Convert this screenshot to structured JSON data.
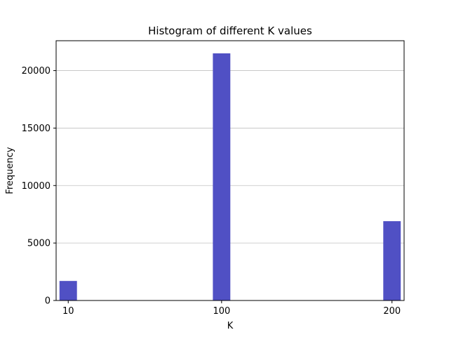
{
  "chart_data": {
    "type": "bar",
    "title": "Histogram of different K values",
    "xlabel": "K",
    "ylabel": "Frequency",
    "x_ticks": [
      10,
      100,
      200
    ],
    "y_ticks": [
      0,
      5000,
      10000,
      15000,
      20000
    ],
    "xlim": [
      2.9,
      207.1
    ],
    "ylim": [
      0,
      22600
    ],
    "bin_width": 10.25,
    "bars": [
      {
        "x": 10,
        "value": 1700
      },
      {
        "x": 100,
        "value": 21500
      },
      {
        "x": 200,
        "value": 6900
      }
    ],
    "grid": {
      "y": true,
      "x": false
    },
    "colors": {
      "bar": "#5050c4",
      "grid": "#c0c0c0",
      "axis": "#000000"
    }
  }
}
